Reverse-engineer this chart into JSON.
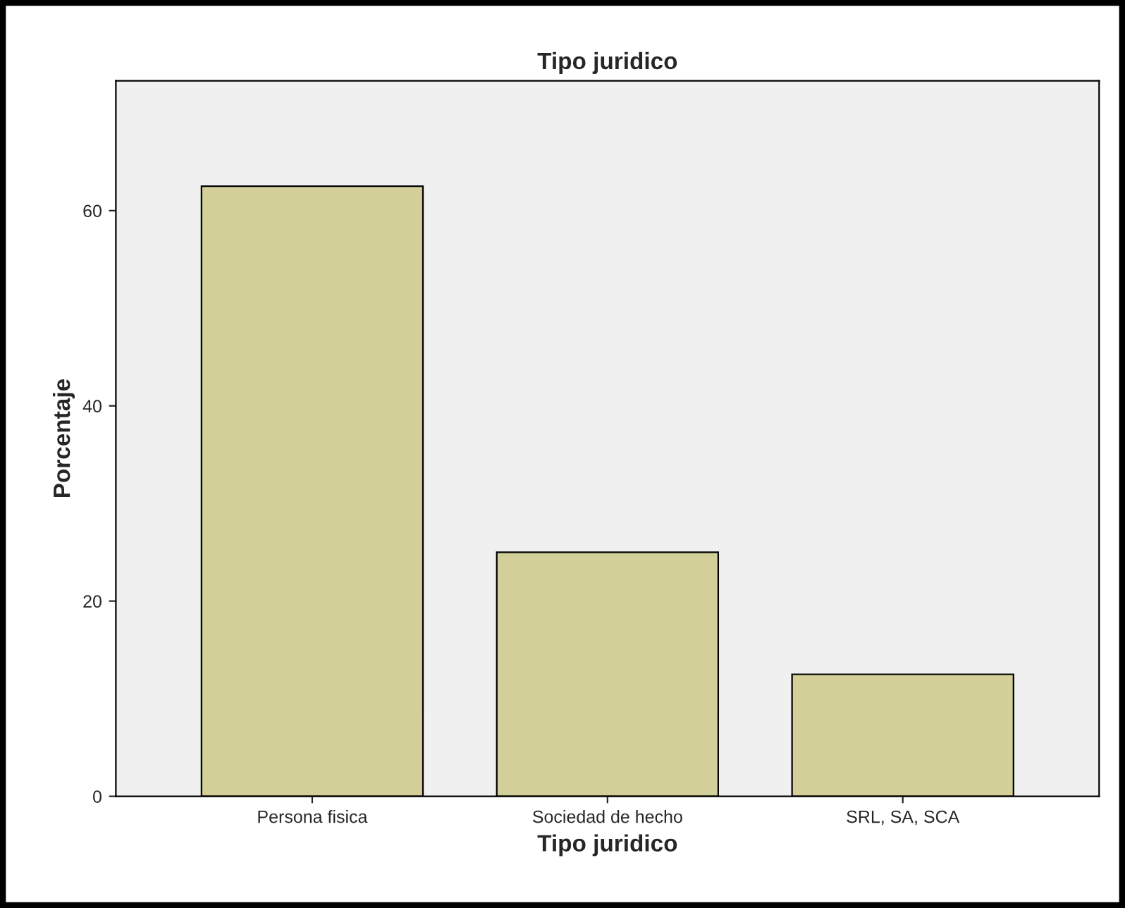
{
  "chart_data": {
    "type": "bar",
    "title": "Tipo juridico",
    "xlabel": "Tipo juridico",
    "ylabel": "Porcentaje",
    "categories": [
      "Persona fisica",
      "Sociedad de hecho",
      "SRL, SA, SCA"
    ],
    "values": [
      62.5,
      25,
      12.5
    ],
    "color": "#d3cf98",
    "ylim": [
      0,
      73.3
    ],
    "yticks": [
      0,
      20,
      40,
      60
    ],
    "grid": false,
    "legend": false
  }
}
